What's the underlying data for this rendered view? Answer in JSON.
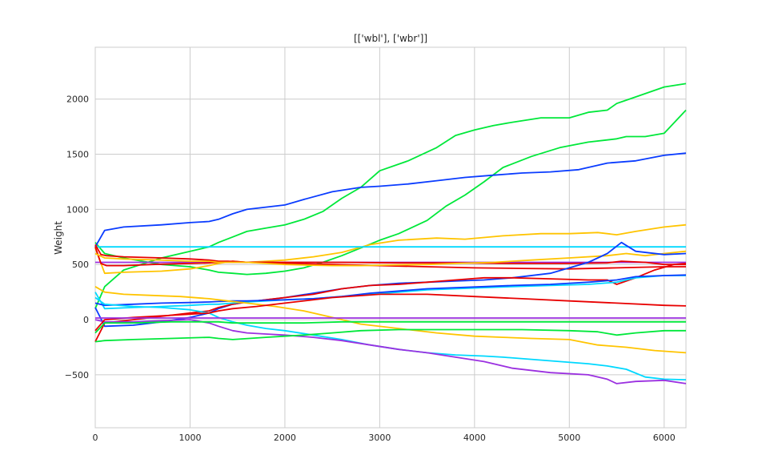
{
  "chart_data": {
    "type": "line",
    "title": "[['wbl'], ['wbr']]",
    "xlabel": "",
    "ylabel": "Weight",
    "xlim": [
      0,
      6230
    ],
    "ylim": [
      -980,
      2470
    ],
    "xticks": [
      0,
      1000,
      2000,
      3000,
      4000,
      5000,
      6000
    ],
    "xtick_labels": [
      "0",
      "1000",
      "2000",
      "3000",
      "4000",
      "5000",
      "6000"
    ],
    "yticks": [
      -500,
      0,
      500,
      1000,
      1500,
      2000
    ],
    "ytick_labels": [
      "−500",
      "0",
      "500",
      "1000",
      "1500",
      "2000"
    ],
    "grid": true,
    "legend": "none",
    "series": [
      {
        "color": "#00e83a",
        "x": [
          0,
          100,
          300,
          700,
          1000,
          1200,
          1300,
          1450,
          1600,
          1800,
          2000,
          2200,
          2400,
          2600,
          2800,
          3000,
          3300,
          3600,
          3800,
          4000,
          4200,
          4400,
          4700,
          5000,
          5200,
          5400,
          5500,
          5700,
          6000,
          6230
        ],
        "y": [
          100,
          300,
          450,
          560,
          620,
          660,
          700,
          750,
          800,
          830,
          860,
          910,
          980,
          1100,
          1200,
          1350,
          1440,
          1560,
          1670,
          1720,
          1760,
          1790,
          1830,
          1830,
          1880,
          1900,
          1960,
          2020,
          2110,
          2140
        ]
      },
      {
        "color": "#00e83a",
        "x": [
          0,
          100,
          300,
          700,
          1000,
          1200,
          1300,
          1450,
          1600,
          1800,
          2000,
          2200,
          2400,
          2600,
          2800,
          3000,
          3200,
          3500,
          3700,
          3900,
          4100,
          4300,
          4600,
          4900,
          5200,
          5400,
          5500,
          5600,
          5800,
          6000,
          6230
        ],
        "y": [
          700,
          600,
          560,
          500,
          480,
          450,
          430,
          420,
          410,
          420,
          440,
          470,
          520,
          580,
          650,
          720,
          780,
          900,
          1030,
          1130,
          1250,
          1380,
          1480,
          1560,
          1610,
          1630,
          1640,
          1660,
          1660,
          1690,
          1900
        ]
      },
      {
        "color": "#0a3cff",
        "x": [
          0,
          100,
          300,
          700,
          1000,
          1200,
          1300,
          1450,
          1600,
          1800,
          2000,
          2200,
          2500,
          2800,
          3000,
          3300,
          3600,
          3900,
          4200,
          4500,
          4800,
          5100,
          5400,
          5700,
          6000,
          6230
        ],
        "y": [
          660,
          810,
          840,
          860,
          880,
          890,
          910,
          960,
          1000,
          1020,
          1040,
          1090,
          1160,
          1200,
          1210,
          1230,
          1260,
          1290,
          1310,
          1330,
          1340,
          1360,
          1420,
          1440,
          1490,
          1510
        ]
      },
      {
        "color": "#ffc400",
        "x": [
          0,
          100,
          300,
          700,
          1000,
          1200,
          1300,
          1450,
          1600,
          1800,
          2000,
          2300,
          2600,
          2900,
          3200,
          3600,
          3900,
          4300,
          4700,
          5000,
          5300,
          5500,
          5700,
          6000,
          6230
        ],
        "y": [
          650,
          420,
          430,
          440,
          460,
          490,
          510,
          530,
          520,
          530,
          540,
          570,
          610,
          680,
          720,
          740,
          730,
          760,
          780,
          780,
          790,
          770,
          800,
          840,
          860
        ]
      },
      {
        "color": "#00d8ff",
        "x": [
          0,
          6230
        ],
        "y": [
          660,
          660
        ]
      },
      {
        "color": "#9b30e0",
        "x": [
          0,
          6230
        ],
        "y": [
          520,
          520
        ]
      },
      {
        "color": "#e80000",
        "x": [
          0,
          60,
          120,
          300,
          700,
          1000,
          1200,
          1300,
          1400,
          1600,
          2000,
          2500,
          3000,
          3500,
          4000,
          4500,
          5000,
          5500,
          6000,
          6230
        ],
        "y": [
          680,
          590,
          580,
          570,
          560,
          550,
          540,
          530,
          530,
          520,
          510,
          500,
          490,
          480,
          470,
          465,
          460,
          470,
          480,
          480
        ]
      },
      {
        "color": "#e80000",
        "x": [
          0,
          60,
          120,
          300,
          600,
          1000,
          1200,
          1300,
          1450,
          1600,
          2000,
          2600,
          3200,
          3800,
          4400,
          5000,
          5400,
          5550,
          5800,
          6000,
          6230
        ],
        "y": [
          660,
          510,
          490,
          490,
          500,
          510,
          515,
          520,
          530,
          520,
          520,
          520,
          515,
          515,
          510,
          510,
          515,
          530,
          520,
          500,
          500
        ]
      },
      {
        "color": "#ffc400",
        "x": [
          0,
          100,
          300,
          700,
          1000,
          1200,
          1300,
          1450,
          1600,
          1800,
          2000,
          2200,
          2500,
          2800,
          3100,
          3500,
          3800,
          4200,
          4600,
          5000,
          5400,
          5600,
          5800,
          6000,
          6230
        ],
        "y": [
          600,
          560,
          550,
          540,
          530,
          530,
          520,
          520,
          520,
          510,
          500,
          495,
          490,
          490,
          495,
          500,
          510,
          520,
          540,
          560,
          580,
          600,
          580,
          600,
          620
        ]
      },
      {
        "color": "#0a3cff",
        "x": [
          0,
          100,
          400,
          700,
          1000,
          1200,
          1300,
          1450,
          1600,
          1800,
          2000,
          2300,
          2600,
          2900,
          3200,
          3500,
          3800,
          4100,
          4400,
          4800,
          5200,
          5400,
          5550,
          5700,
          6000,
          6230
        ],
        "y": [
          110,
          -60,
          -50,
          -20,
          20,
          60,
          100,
          140,
          160,
          180,
          200,
          240,
          280,
          310,
          330,
          340,
          350,
          360,
          380,
          420,
          520,
          600,
          700,
          620,
          590,
          600
        ]
      },
      {
        "color": "#e80000",
        "x": [
          0,
          100,
          400,
          700,
          1000,
          1200,
          1300,
          1450,
          1600,
          1800,
          2000,
          2300,
          2600,
          2900,
          3200,
          3500,
          3800,
          4100,
          4400,
          4800,
          5200,
          5400,
          5500,
          5700,
          5900,
          6100,
          6230
        ],
        "y": [
          -200,
          -30,
          0,
          30,
          60,
          80,
          110,
          140,
          160,
          180,
          200,
          230,
          280,
          310,
          320,
          340,
          360,
          380,
          380,
          370,
          360,
          360,
          320,
          380,
          450,
          500,
          510
        ]
      },
      {
        "color": "#00d8ff",
        "x": [
          0,
          100,
          400,
          700,
          1000,
          1200,
          1300,
          1450,
          1600,
          1800,
          2000,
          2300,
          2600,
          2900,
          3200,
          3500,
          3800,
          4100,
          4400,
          4800,
          5200,
          5500,
          5700,
          6000,
          6230
        ],
        "y": [
          250,
          100,
          110,
          120,
          130,
          140,
          140,
          150,
          160,
          170,
          180,
          190,
          210,
          230,
          250,
          270,
          280,
          290,
          300,
          310,
          320,
          340,
          380,
          400,
          400
        ]
      },
      {
        "color": "#0a3cff",
        "x": [
          0,
          100,
          400,
          700,
          1000,
          1200,
          1300,
          1450,
          1600,
          1800,
          2000,
          2300,
          2600,
          2900,
          3200,
          3500,
          3800,
          4100,
          4400,
          4800,
          5200,
          5500,
          5700,
          6000,
          6230
        ],
        "y": [
          150,
          130,
          140,
          150,
          155,
          160,
          165,
          170,
          170,
          175,
          180,
          190,
          210,
          240,
          260,
          280,
          290,
          300,
          310,
          320,
          340,
          360,
          390,
          400,
          405
        ]
      },
      {
        "color": "#ffc400",
        "x": [
          0,
          100,
          300,
          600,
          900,
          1200,
          1400,
          1600,
          1900,
          2200,
          2500,
          2800,
          3200,
          3600,
          4000,
          4300,
          4600,
          5000,
          5300,
          5600,
          5900,
          6230
        ],
        "y": [
          300,
          250,
          230,
          220,
          210,
          190,
          170,
          150,
          120,
          80,
          20,
          -40,
          -80,
          -120,
          -150,
          -160,
          -170,
          -180,
          -230,
          -250,
          -280,
          -300
        ]
      },
      {
        "color": "#00d8ff",
        "x": [
          0,
          100,
          400,
          700,
          1000,
          1200,
          1300,
          1450,
          1600,
          1800,
          2000,
          2300,
          2600,
          2900,
          3200,
          3500,
          3800,
          4100,
          4300,
          4600,
          4900,
          5200,
          5400,
          5600,
          5800,
          6000,
          6230
        ],
        "y": [
          200,
          140,
          120,
          110,
          90,
          60,
          20,
          -20,
          -50,
          -80,
          -100,
          -140,
          -180,
          -230,
          -270,
          -300,
          -320,
          -330,
          -340,
          -360,
          -380,
          -400,
          -420,
          -450,
          -520,
          -540,
          -545
        ]
      },
      {
        "color": "#9b30e0",
        "x": [
          0,
          100,
          400,
          700,
          1000,
          1200,
          1300,
          1450,
          1600,
          1800,
          2000,
          2300,
          2600,
          2900,
          3200,
          3500,
          3800,
          4100,
          4400,
          4800,
          5200,
          5400,
          5500,
          5700,
          6000,
          6230
        ],
        "y": [
          0,
          -20,
          -20,
          -10,
          0,
          -30,
          -60,
          -100,
          -120,
          -130,
          -140,
          -160,
          -190,
          -230,
          -270,
          -300,
          -340,
          -380,
          -440,
          -480,
          -500,
          -540,
          -580,
          -560,
          -550,
          -580
        ]
      },
      {
        "color": "#e80000",
        "x": [
          0,
          100,
          400,
          800,
          1200,
          1300,
          1450,
          1700,
          2000,
          2500,
          3000,
          3500,
          4000,
          4500,
          5000,
          5500,
          6000,
          6230
        ],
        "y": [
          -100,
          0,
          20,
          40,
          60,
          80,
          100,
          120,
          150,
          200,
          230,
          230,
          210,
          190,
          170,
          150,
          130,
          125
        ]
      },
      {
        "color": "#9b30e0",
        "x": [
          0,
          6230
        ],
        "y": [
          15,
          15
        ]
      },
      {
        "color": "#00e83a",
        "x": [
          0,
          100,
          400,
          800,
          1200,
          1300,
          1450,
          1800,
          2200,
          2600,
          3000,
          3500,
          4000,
          4500,
          5000,
          5300,
          5500,
          5700,
          6000,
          6230
        ],
        "y": [
          -120,
          -30,
          -30,
          -20,
          -20,
          -20,
          -30,
          -30,
          -30,
          -20,
          -20,
          -20,
          -20,
          -20,
          -20,
          -20,
          -20,
          -20,
          -20,
          -20
        ]
      },
      {
        "color": "#00e83a",
        "x": [
          0,
          100,
          400,
          800,
          1200,
          1300,
          1450,
          1800,
          2200,
          2500,
          2800,
          3200,
          3600,
          4000,
          4500,
          5000,
          5300,
          5500,
          5700,
          6000,
          6230
        ],
        "y": [
          -200,
          -190,
          -180,
          -170,
          -160,
          -170,
          -180,
          -160,
          -140,
          -120,
          -100,
          -90,
          -90,
          -90,
          -90,
          -100,
          -110,
          -140,
          -120,
          -100,
          -100
        ]
      }
    ]
  }
}
